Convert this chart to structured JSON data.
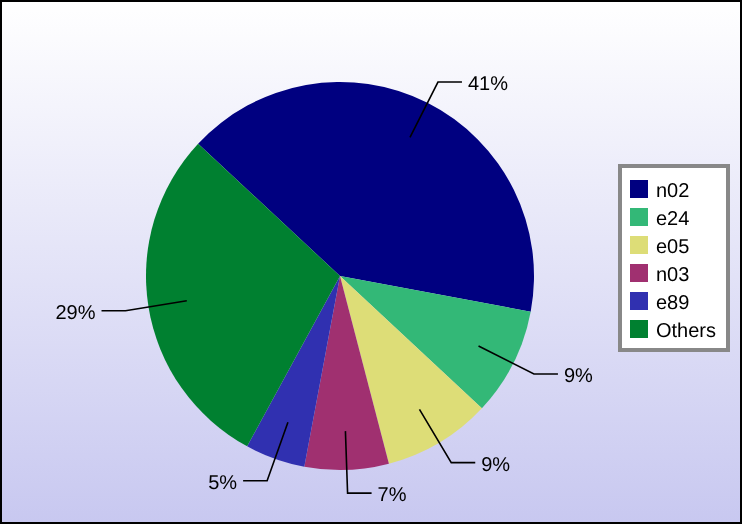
{
  "chart_data": {
    "type": "pie",
    "categories": [
      "n02",
      "e24",
      "e05",
      "n03",
      "e89",
      "Others"
    ],
    "values": [
      41,
      9,
      9,
      7,
      5,
      29
    ],
    "colors": [
      "#000080",
      "#33b877",
      "#dddd77",
      "#a03070",
      "#3030b0",
      "#008030"
    ],
    "value_labels": [
      "41%",
      "9%",
      "9%",
      "7%",
      "5%",
      "29%"
    ],
    "legend": "right"
  }
}
